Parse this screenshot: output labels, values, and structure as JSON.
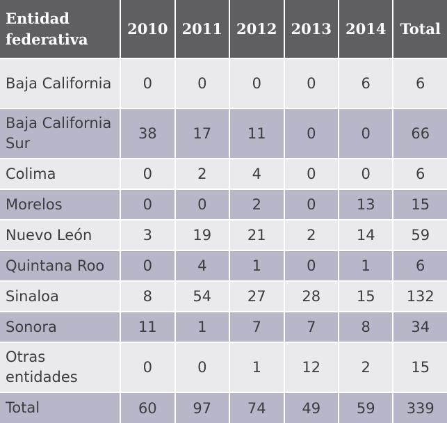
{
  "headers": [
    "Entidad federativa",
    "2010",
    "2011",
    "2012",
    "2013",
    "2014",
    "Total"
  ],
  "rows": [
    {
      "entidad": "Baja California",
      "values": [
        "0",
        "0",
        "0",
        "0",
        "6",
        "6"
      ]
    },
    {
      "entidad": "Baja California Sur",
      "values": [
        "38",
        "17",
        "11",
        "0",
        "0",
        "66"
      ]
    },
    {
      "entidad": "Colima",
      "values": [
        "0",
        "2",
        "4",
        "0",
        "0",
        "6"
      ]
    },
    {
      "entidad": "Morelos",
      "values": [
        "0",
        "0",
        "2",
        "0",
        "13",
        "15"
      ]
    },
    {
      "entidad": "Nuevo León",
      "values": [
        "3",
        "19",
        "21",
        "2",
        "14",
        "59"
      ]
    },
    {
      "entidad": "Quintana Roo",
      "values": [
        "0",
        "4",
        "1",
        "0",
        "1",
        "6"
      ]
    },
    {
      "entidad": "Sinaloa",
      "values": [
        "8",
        "54",
        "27",
        "28",
        "15",
        "132"
      ]
    },
    {
      "entidad": "Sonora",
      "values": [
        "11",
        "1",
        "7",
        "7",
        "8",
        "34"
      ]
    },
    {
      "entidad": "Otras entidades",
      "values": [
        "0",
        "0",
        "1",
        "12",
        "2",
        "15"
      ]
    },
    {
      "entidad": "Total",
      "values": [
        "60",
        "97",
        "74",
        "49",
        "59",
        "339"
      ]
    }
  ]
}
